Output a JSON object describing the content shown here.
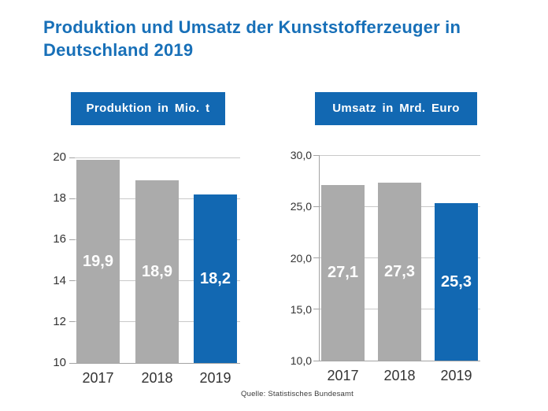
{
  "page": {
    "title_line1": "Produktion und Umsatz der Kunststofferzeuger in",
    "title_line2": "Deutschland 2019",
    "source": "Quelle: Statistisches Bundesamt"
  },
  "colors": {
    "title_blue": "#1870B8",
    "accent_blue": "#1268B2",
    "bar_gray": "#ABABAB",
    "grid_gray": "#C9C9C9",
    "axis_gray": "#A3A3A3",
    "text_dark": "#333333",
    "value_label_white": "#FFFFFF"
  },
  "chart_data": [
    {
      "type": "bar",
      "title": "Produktion in Mio. t",
      "categories": [
        "2017",
        "2018",
        "2019"
      ],
      "values": [
        19.9,
        18.9,
        18.2
      ],
      "value_labels": [
        "19,9",
        "18,9",
        "18,2"
      ],
      "series_colors": [
        "#ABABAB",
        "#ABABAB",
        "#1268B2"
      ],
      "ylim": [
        10,
        20
      ],
      "ytick_values": [
        20,
        18,
        16,
        14,
        12,
        10
      ],
      "ytick_labels": [
        "20",
        "18",
        "16",
        "14",
        "12",
        "10"
      ],
      "xlabel": "",
      "ylabel": "",
      "grid": true,
      "legend_position": "none"
    },
    {
      "type": "bar",
      "title": "Umsatz in Mrd. Euro",
      "categories": [
        "2017",
        "2018",
        "2019"
      ],
      "values": [
        27.1,
        27.3,
        25.3
      ],
      "value_labels": [
        "27,1",
        "27,3",
        "25,3"
      ],
      "series_colors": [
        "#ABABAB",
        "#ABABAB",
        "#1268B2"
      ],
      "ylim": [
        10,
        30
      ],
      "ytick_values": [
        30,
        25,
        20,
        15,
        10
      ],
      "ytick_labels": [
        "30,0",
        "25,0",
        "20,0",
        "15,0",
        "10,0"
      ],
      "xlabel": "",
      "ylabel": "",
      "grid": true,
      "legend_position": "none"
    }
  ]
}
